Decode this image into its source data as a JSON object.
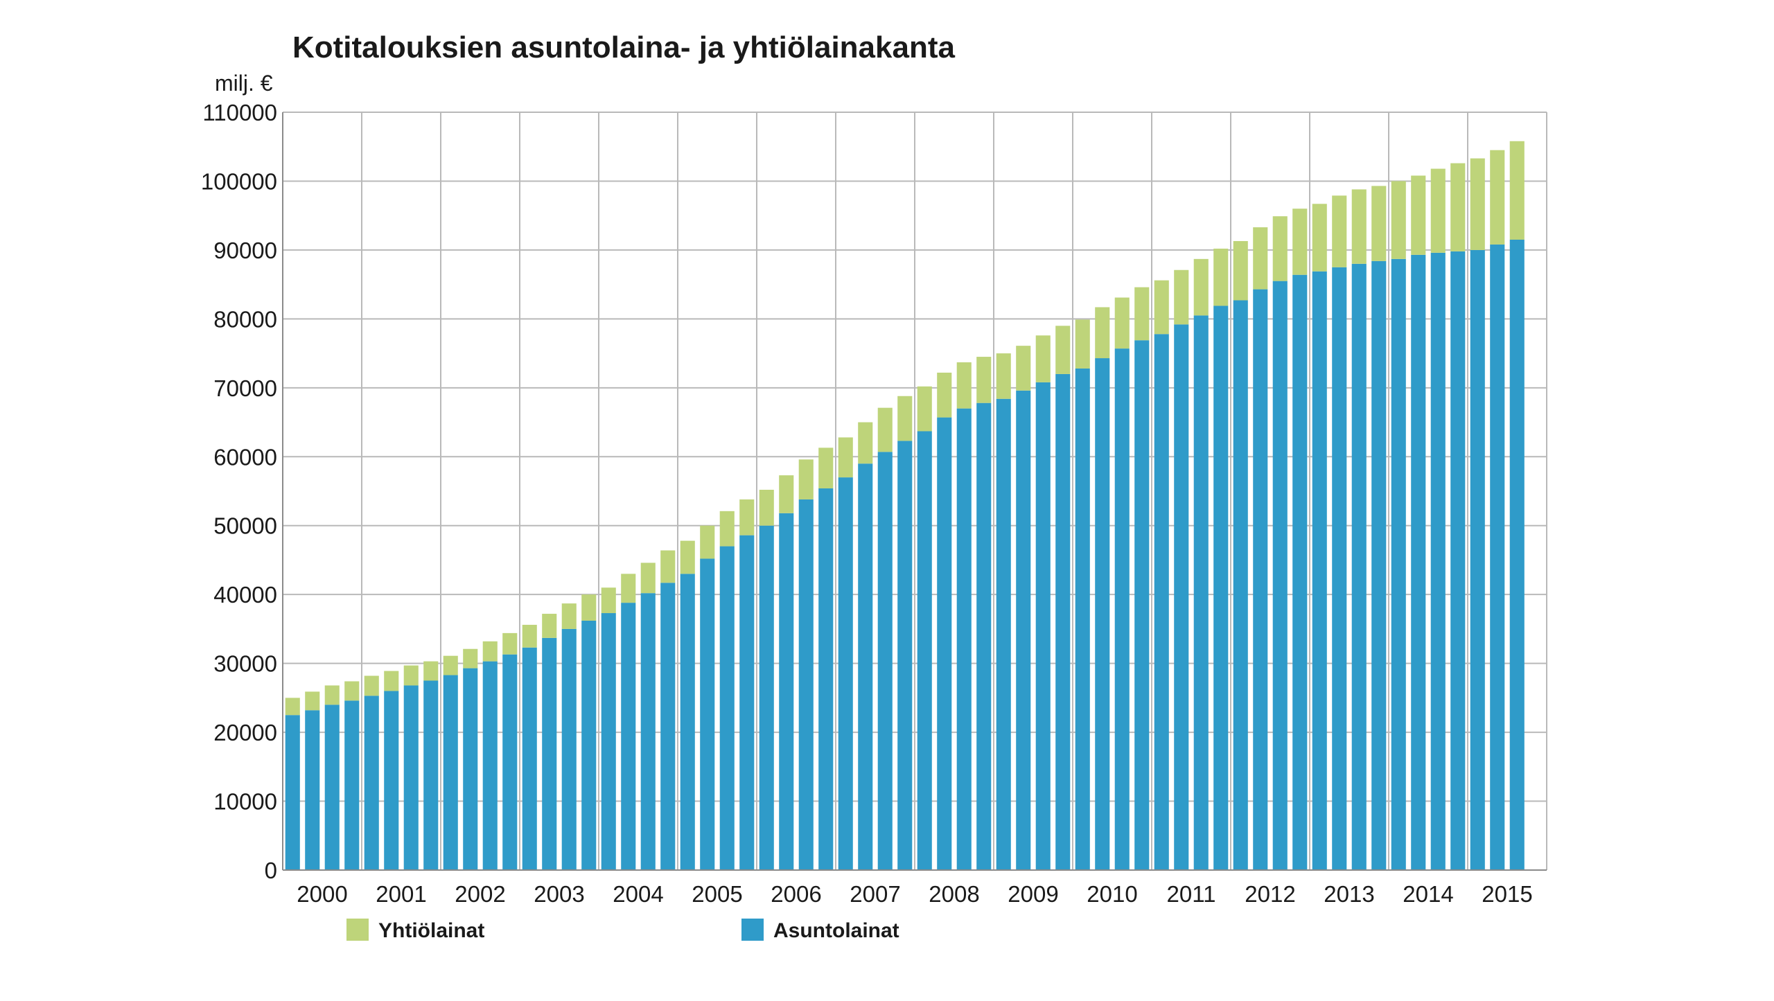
{
  "chart_data": {
    "type": "bar",
    "stacked": true,
    "title": "Kotitalouksien asuntolaina- ja yhtiölainakanta",
    "unit": "milj. €",
    "xlabel": "",
    "ylabel": "",
    "ylim": [
      0,
      110000
    ],
    "y_ticks": [
      "0",
      "10000",
      "20000",
      "30000",
      "40000",
      "50000",
      "60000",
      "70000",
      "80000",
      "90000",
      "100000",
      "110000"
    ],
    "year_labels": [
      "2000",
      "2001",
      "2002",
      "2003",
      "2004",
      "2005",
      "2006",
      "2007",
      "2008",
      "2009",
      "2010",
      "2011",
      "2012",
      "2013",
      "2014",
      "2015"
    ],
    "bars_per_year": 4,
    "grid": true,
    "legend_position": "bottom",
    "series": [
      {
        "name": "Asuntolainat",
        "color": "#2f9bc9",
        "values": [
          22500,
          23200,
          24000,
          24600,
          25300,
          26000,
          26800,
          27500,
          28300,
          29300,
          30300,
          31300,
          32300,
          33700,
          35000,
          36200,
          37300,
          38800,
          40200,
          41700,
          43000,
          45200,
          47000,
          48600,
          50000,
          51800,
          53800,
          55400,
          57000,
          59000,
          60700,
          62300,
          63700,
          65700,
          67000,
          67800,
          68400,
          69600,
          70800,
          72000,
          72800,
          74300,
          75700,
          76900,
          77800,
          79200,
          80500,
          81900,
          82700,
          84300,
          85500,
          86400,
          86900,
          87500,
          88000,
          88400,
          88700,
          89300,
          89600,
          89800,
          90000,
          90800,
          91500
        ]
      },
      {
        "name": "Yhtiölainat",
        "color": "#bed47a",
        "values": [
          2500,
          2700,
          2800,
          2800,
          2900,
          2900,
          2900,
          2800,
          2800,
          2800,
          2900,
          3100,
          3300,
          3500,
          3700,
          3800,
          3700,
          4200,
          4400,
          4700,
          4800,
          4800,
          5100,
          5200,
          5200,
          5500,
          5800,
          5900,
          5800,
          6000,
          6400,
          6500,
          6500,
          6500,
          6700,
          6700,
          6600,
          6500,
          6800,
          7000,
          7100,
          7400,
          7400,
          7700,
          7800,
          7900,
          8200,
          8300,
          8600,
          9000,
          9400,
          9600,
          9800,
          10400,
          10800,
          10900,
          11300,
          11500,
          12200,
          12800,
          13300,
          13700,
          14300
        ]
      }
    ]
  }
}
